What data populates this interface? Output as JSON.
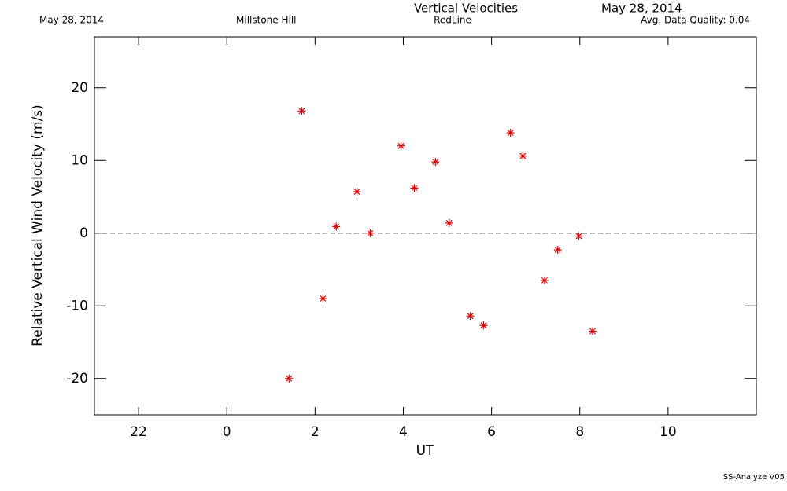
{
  "chart_data": {
    "type": "scatter",
    "title": "Vertical Velocities",
    "subtitle": "RedLine",
    "header_left_date": "May 28, 2014",
    "station": "Millstone Hill",
    "header_right_date": "May 28, 2014",
    "quality": "Avg. Data Quality: 0.04",
    "footer": "SS-Analyze V05",
    "xlabel": "UT",
    "ylabel": "Relative Vertical Wind Velocity (m/s)",
    "xlim": [
      -3,
      12
    ],
    "xticks": [
      {
        "value": -2,
        "label": "22"
      },
      0,
      2,
      4,
      6,
      8,
      10
    ],
    "ylim": [
      -25,
      27
    ],
    "yticks": [
      -20,
      -10,
      0,
      10,
      20
    ],
    "zero_line": 0,
    "series": [
      {
        "color": "#dd0000",
        "x": [
          1.41,
          1.7,
          2.18,
          2.48,
          2.95,
          3.25,
          3.95,
          4.25,
          4.73,
          5.04,
          5.52,
          5.82,
          6.43,
          6.71,
          7.2,
          7.5,
          7.98,
          8.29
        ],
        "values": [
          -20.0,
          16.8,
          -9.0,
          0.9,
          5.7,
          0.0,
          12.0,
          6.2,
          9.8,
          1.4,
          -11.4,
          -12.7,
          13.8,
          10.6,
          -6.5,
          -2.3,
          -0.4,
          -13.5
        ]
      }
    ]
  }
}
